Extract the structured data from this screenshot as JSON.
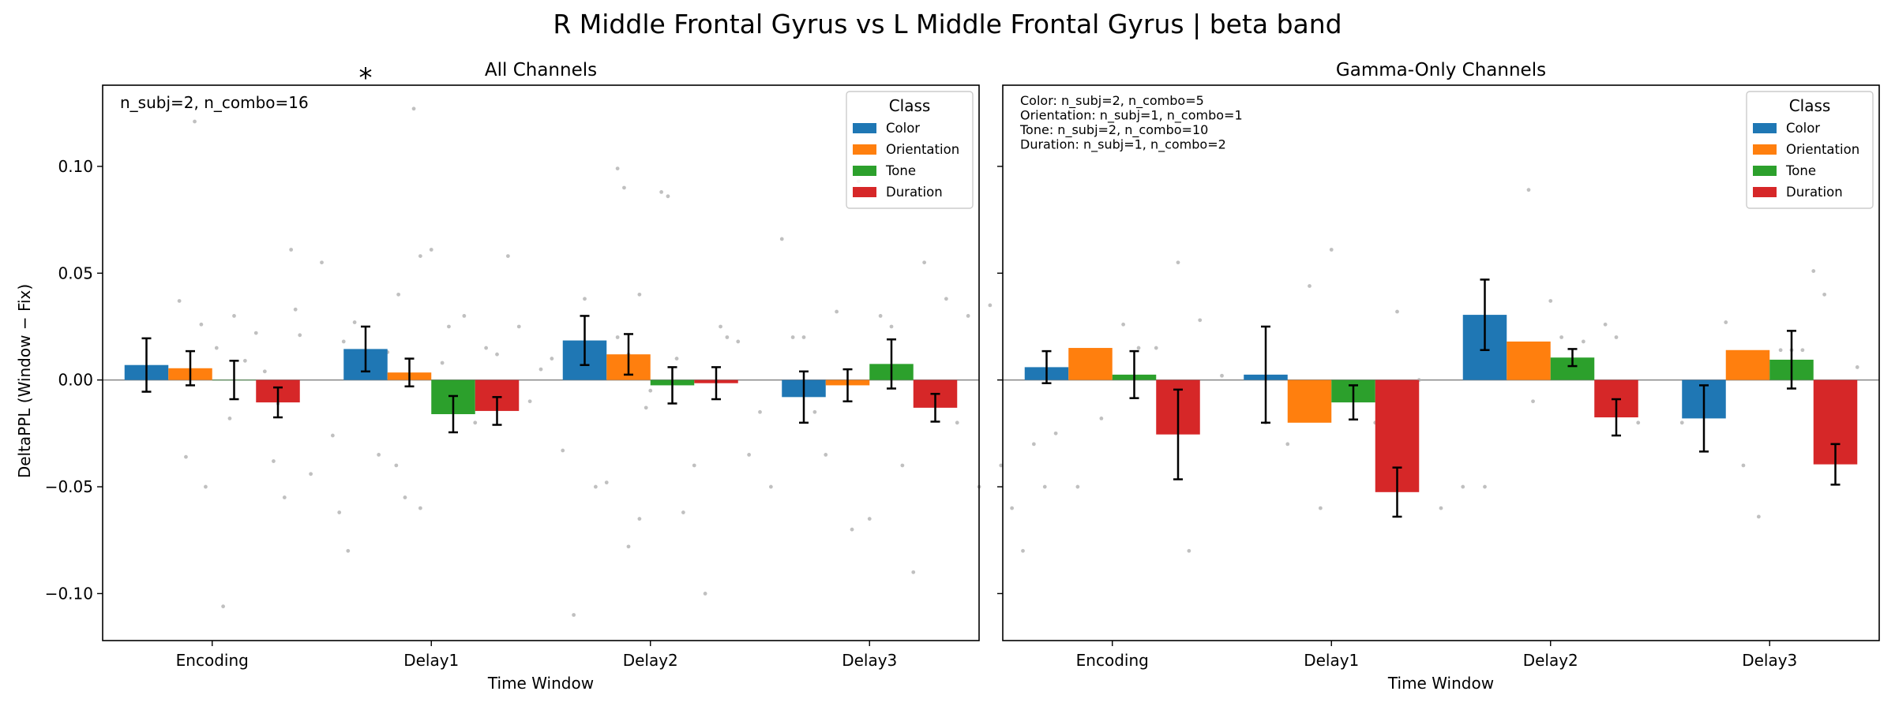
{
  "figure": {
    "suptitle": "R Middle Frontal Gyrus vs L Middle Frontal Gyrus  |  beta band",
    "ylabel": "DeltaPPL (Window − Fix)",
    "legend_title": "Class",
    "colors": {
      "Color": "#1f77b4",
      "Orientation": "#ff7f0e",
      "Tone": "#2ca02c",
      "Duration": "#d62728"
    },
    "significance_marker_color": "#ff0000"
  },
  "chart_data": [
    {
      "type": "bar",
      "title": "All Channels",
      "xlabel": "Time Window",
      "ylabel": "DeltaPPL (Window − Fix)",
      "categories": [
        "Encoding",
        "Delay1",
        "Delay2",
        "Delay3"
      ],
      "ylim": [
        -0.122,
        0.138
      ],
      "yticks": [
        -0.1,
        -0.05,
        0.0,
        0.05,
        0.1
      ],
      "ytick_labels": [
        "−0.10",
        "−0.05",
        "0.00",
        "0.05",
        "0.10"
      ],
      "show_yticklabels": true,
      "legend": {
        "title": "Class",
        "placement": "top-right"
      },
      "annotation": "n_subj=2, n_combo=16",
      "annotation_lines": [],
      "significance": [
        {
          "category": "Delay1",
          "offset": -0.3,
          "label": "*"
        }
      ],
      "series": [
        {
          "name": "Color",
          "values": [
            0.007,
            0.0145,
            0.0185,
            -0.008
          ],
          "errors": [
            0.0125,
            0.0105,
            0.0115,
            0.012
          ]
        },
        {
          "name": "Orientation",
          "values": [
            0.0055,
            0.0035,
            0.012,
            -0.0025
          ],
          "errors": [
            0.008,
            0.0065,
            0.0095,
            0.0075
          ]
        },
        {
          "name": "Tone",
          "values": [
            0,
            -0.016,
            -0.0025,
            0.0075
          ],
          "errors": [
            0.009,
            0.0085,
            0.0085,
            0.0115
          ]
        },
        {
          "name": "Duration",
          "values": [
            -0.0105,
            -0.0145,
            -0.0015,
            -0.013
          ],
          "errors": [
            0.007,
            0.0065,
            0.0075,
            0.0065
          ]
        }
      ],
      "scatter_points": [
        [
          0.35,
          0.037
        ],
        [
          0.42,
          0.121
        ],
        [
          0.55,
          -0.106
        ],
        [
          0.38,
          -0.036
        ],
        [
          0.47,
          -0.05
        ],
        [
          0.52,
          0.015
        ],
        [
          0.6,
          0.03
        ],
        [
          0.45,
          0.026
        ],
        [
          0.58,
          -0.018
        ],
        [
          0.65,
          0.009
        ],
        [
          0.7,
          0.022
        ],
        [
          0.74,
          0.004
        ],
        [
          0.8,
          -0.011
        ],
        [
          0.83,
          -0.055
        ],
        [
          0.86,
          0.061
        ],
        [
          0.88,
          0.033
        ],
        [
          0.9,
          0.021
        ],
        [
          0.95,
          -0.044
        ],
        [
          1.0,
          0.055
        ],
        [
          1.05,
          -0.026
        ],
        [
          1.08,
          -0.062
        ],
        [
          1.12,
          -0.08
        ],
        [
          1.15,
          0.027
        ],
        [
          1.2,
          0.011
        ],
        [
          1.26,
          -0.035
        ],
        [
          1.3,
          0.013
        ],
        [
          1.34,
          -0.04
        ],
        [
          1.38,
          -0.055
        ],
        [
          1.45,
          0.058
        ],
        [
          1.48,
          0.002
        ],
        [
          0.78,
          -0.038
        ],
        [
          1.1,
          0.018
        ],
        [
          1.35,
          0.04
        ],
        [
          1.42,
          0.127
        ],
        [
          1.45,
          -0.06
        ],
        [
          1.5,
          0.061
        ],
        [
          1.58,
          0.025
        ],
        [
          1.65,
          0.03
        ],
        [
          1.75,
          0.015
        ],
        [
          1.8,
          0.012
        ],
        [
          1.85,
          0.058
        ],
        [
          1.9,
          0.025
        ],
        [
          1.95,
          -0.01
        ],
        [
          2.05,
          0.01
        ],
        [
          2.1,
          -0.033
        ],
        [
          2.15,
          -0.11
        ],
        [
          2.25,
          -0.05
        ],
        [
          2.3,
          -0.048
        ],
        [
          2.4,
          0.012
        ],
        [
          2.45,
          -0.065
        ],
        [
          2.48,
          -0.013
        ],
        [
          2.2,
          0.038
        ],
        [
          2.35,
          0.02
        ],
        [
          1.7,
          -0.02
        ],
        [
          2.0,
          0.005
        ],
        [
          1.55,
          0.008
        ],
        [
          2.35,
          0.099
        ],
        [
          2.38,
          0.09
        ],
        [
          2.4,
          -0.078
        ],
        [
          2.45,
          0.04
        ],
        [
          2.55,
          0.088
        ],
        [
          2.58,
          0.086
        ],
        [
          2.65,
          -0.062
        ],
        [
          2.7,
          -0.04
        ],
        [
          2.75,
          -0.1
        ],
        [
          2.82,
          0.025
        ],
        [
          2.85,
          0.02
        ],
        [
          2.9,
          0.018
        ],
        [
          2.95,
          -0.035
        ],
        [
          3.05,
          -0.05
        ],
        [
          3.1,
          0.066
        ],
        [
          3.15,
          0.02
        ],
        [
          3.2,
          0.02
        ],
        [
          3.25,
          -0.015
        ],
        [
          3.3,
          -0.035
        ],
        [
          2.62,
          0.01
        ],
        [
          3.0,
          -0.015
        ],
        [
          2.5,
          -0.005
        ],
        [
          3.35,
          0.032
        ],
        [
          3.42,
          -0.07
        ],
        [
          3.45,
          0.093
        ],
        [
          3.5,
          -0.065
        ],
        [
          3.55,
          0.03
        ],
        [
          3.6,
          0.025
        ],
        [
          3.65,
          -0.04
        ],
        [
          3.7,
          -0.09
        ],
        [
          3.75,
          0.055
        ],
        [
          3.85,
          0.038
        ],
        [
          3.9,
          -0.02
        ],
        [
          3.95,
          0.03
        ],
        [
          4.05,
          0.035
        ],
        [
          4.1,
          -0.04
        ],
        [
          4.15,
          -0.06
        ],
        [
          4.2,
          -0.08
        ],
        [
          4.25,
          -0.03
        ],
        [
          4.3,
          -0.05
        ],
        [
          4.35,
          -0.025
        ],
        [
          4.45,
          -0.05
        ],
        [
          4.0,
          -0.05
        ],
        [
          3.8,
          -0.01
        ]
      ]
    },
    {
      "type": "bar",
      "title": "Gamma-Only Channels",
      "xlabel": "Time Window",
      "ylabel": "",
      "categories": [
        "Encoding",
        "Delay1",
        "Delay2",
        "Delay3"
      ],
      "ylim": [
        -0.122,
        0.138
      ],
      "yticks": [
        -0.1,
        -0.05,
        0.0,
        0.05,
        0.1
      ],
      "ytick_labels": [
        "",
        "",
        "",
        "",
        ""
      ],
      "show_yticklabels": false,
      "legend": {
        "title": "Class",
        "placement": "top-right"
      },
      "annotation": "",
      "annotation_lines": [
        "Color: n_subj=2, n_combo=5",
        "Orientation: n_subj=1, n_combo=1",
        "Tone: n_subj=2, n_combo=10",
        "Duration: n_subj=1, n_combo=2"
      ],
      "significance": [],
      "series": [
        {
          "name": "Color",
          "values": [
            0.006,
            0.0025,
            0.0305,
            -0.018
          ],
          "errors": [
            0.0075,
            0.0225,
            0.0165,
            0.0155
          ]
        },
        {
          "name": "Orientation",
          "values": [
            0.015,
            -0.02,
            0.018,
            0.014
          ],
          "errors": [
            0,
            0,
            0,
            0
          ]
        },
        {
          "name": "Tone",
          "values": [
            0.0025,
            -0.0105,
            0.0105,
            0.0095
          ],
          "errors": [
            0.011,
            0.008,
            0.004,
            0.0135
          ]
        },
        {
          "name": "Duration",
          "values": [
            -0.0255,
            -0.0525,
            -0.0175,
            -0.0395
          ],
          "errors": [
            0.021,
            0.0115,
            0.0085,
            0.0095
          ]
        }
      ],
      "scatter_points": [
        [
          0.45,
          -0.018
        ],
        [
          0.55,
          0.026
        ],
        [
          0.62,
          0.015
        ],
        [
          0.7,
          0.015
        ],
        [
          0.8,
          0.055
        ],
        [
          0.85,
          -0.08
        ],
        [
          0.9,
          0.028
        ],
        [
          1.0,
          0.002
        ],
        [
          1.2,
          -0.02
        ],
        [
          1.3,
          -0.03
        ],
        [
          1.4,
          0.044
        ],
        [
          1.45,
          -0.06
        ],
        [
          1.5,
          0.061
        ],
        [
          1.7,
          -0.02
        ],
        [
          1.8,
          0.032
        ],
        [
          1.85,
          -0.012
        ],
        [
          2.0,
          -0.06
        ],
        [
          2.1,
          -0.05
        ],
        [
          2.2,
          -0.05
        ],
        [
          1.9,
          0.0
        ],
        [
          2.4,
          0.089
        ],
        [
          2.42,
          -0.01
        ],
        [
          2.5,
          0.037
        ],
        [
          2.55,
          0.02
        ],
        [
          2.65,
          0.018
        ],
        [
          2.75,
          0.026
        ],
        [
          2.8,
          0.02
        ],
        [
          2.85,
          -0.015
        ],
        [
          2.9,
          -0.02
        ],
        [
          3.1,
          -0.02
        ],
        [
          3.3,
          0.027
        ],
        [
          3.38,
          -0.04
        ],
        [
          3.45,
          -0.064
        ],
        [
          3.55,
          0.014
        ],
        [
          3.6,
          0.014
        ],
        [
          3.7,
          0.051
        ],
        [
          3.75,
          0.04
        ],
        [
          3.8,
          -0.018
        ],
        [
          3.85,
          -0.036
        ],
        [
          4.1,
          -0.05
        ],
        [
          3.9,
          0.006
        ],
        [
          3.65,
          0.014
        ]
      ]
    }
  ]
}
